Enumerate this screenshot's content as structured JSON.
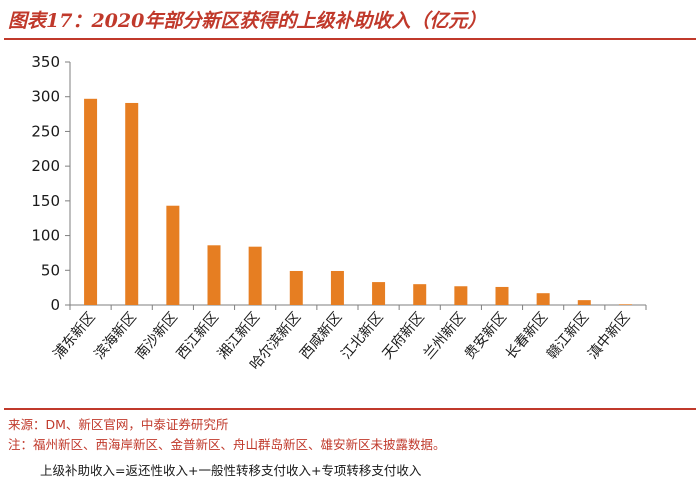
{
  "title": "图表17：2020年部分新区获得的上级补助收入（亿元）",
  "chart_data": {
    "type": "bar",
    "title": "图表17：2020年部分新区获得的上级补助收入（亿元）",
    "categories": [
      "浦东新区",
      "滨海新区",
      "南沙新区",
      "西江新区",
      "湘江新区",
      "哈尔滨新区",
      "西咸新区",
      "江北新区",
      "天府新区",
      "兰州新区",
      "贵安新区",
      "长春新区",
      "赣江新区",
      "滇中新区"
    ],
    "values": [
      297,
      291,
      143,
      86,
      84,
      49,
      49,
      33,
      30,
      27,
      26,
      17,
      7,
      1
    ],
    "ylim": [
      0,
      350
    ],
    "yticks": [
      0,
      50,
      100,
      150,
      200,
      250,
      300,
      350
    ],
    "grid": false,
    "bar_color": "#e67e22"
  },
  "footnotes": {
    "source": "来源：DM、新区官网，中泰证券研究所",
    "note": "注：福州新区、西海岸新区、金普新区、舟山群岛新区、雄安新区未披露数据。",
    "formula": "上级补助收入=返还性收入+一般性转移支付收入+专项转移支付收入"
  },
  "colors": {
    "accent": "#c0392b",
    "bar": "#e67e22"
  }
}
